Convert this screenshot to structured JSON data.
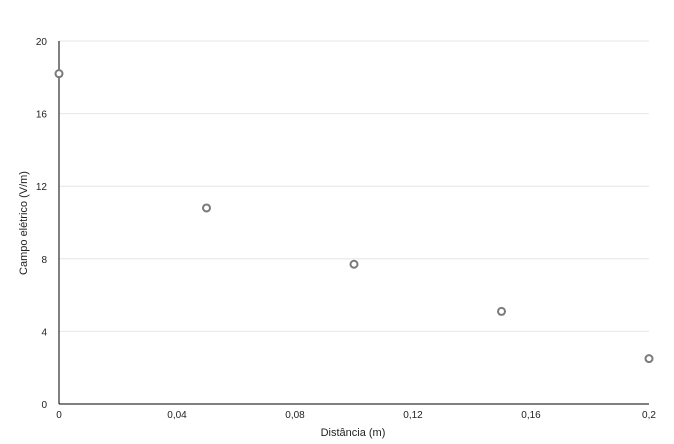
{
  "chart_data": {
    "type": "scatter",
    "title": "",
    "xlabel": "Distância (m)",
    "ylabel": "Campo elétrico (V/m)",
    "xlim": [
      0,
      0.2
    ],
    "ylim": [
      0,
      20
    ],
    "x_ticks": [
      0,
      0.04,
      0.08,
      0.12,
      0.16,
      0.2
    ],
    "x_tick_labels": [
      "0",
      "0,04",
      "0,08",
      "0,12",
      "0,16",
      "0,2"
    ],
    "y_ticks": [
      0,
      4,
      8,
      12,
      16,
      20
    ],
    "y_tick_labels": [
      "0",
      "4",
      "8",
      "12",
      "16",
      "20"
    ],
    "grid": true,
    "legend": "none",
    "series": [
      {
        "x": [
          0,
          0.05,
          0.1,
          0.15,
          0.2
        ],
        "y": [
          18.2,
          10.8,
          7.7,
          5.1,
          2.5
        ]
      }
    ],
    "colors": {
      "point_stroke": "#7a7a7a",
      "point_fill": "#ffffff",
      "grid": "#e6e6e6",
      "axis": "#000000"
    }
  }
}
